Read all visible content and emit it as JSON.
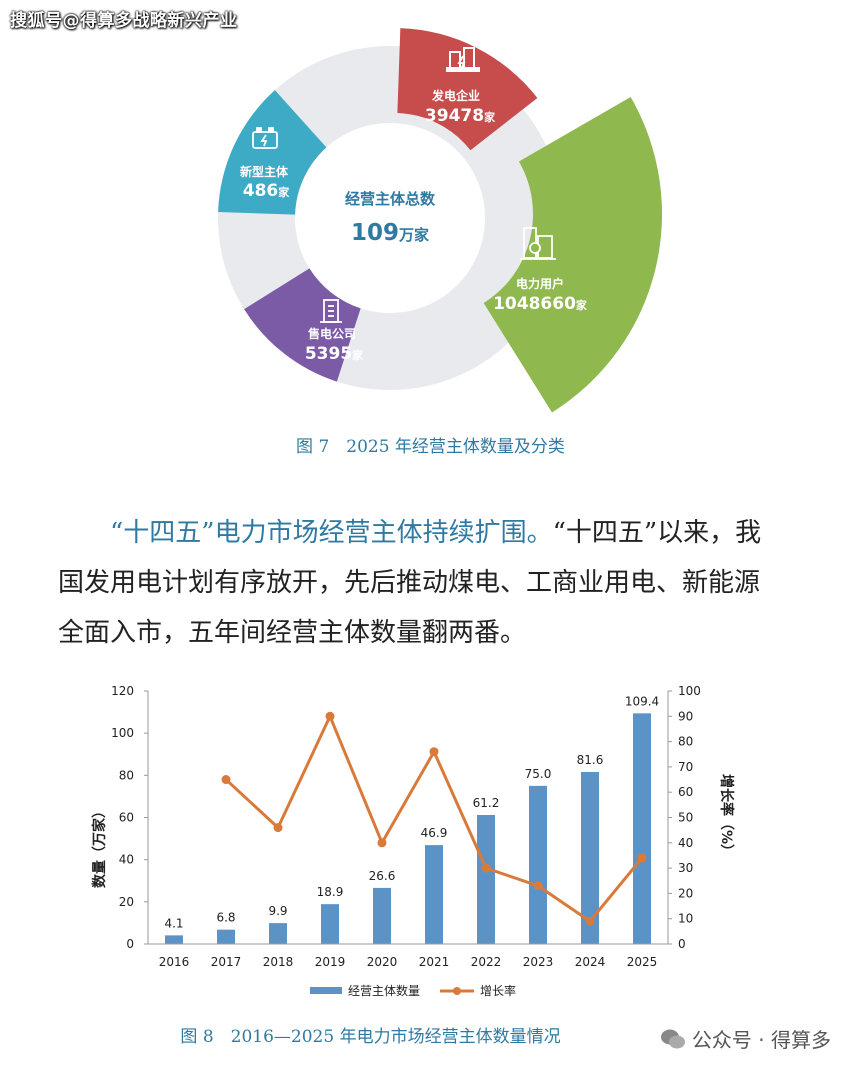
{
  "watermark_top": "搜狐号@得算多战略新兴产业",
  "figure7": {
    "caption": "图 7　2025 年经营主体数量及分类",
    "center_title": "经营主体总数",
    "center_value": "109",
    "center_unit": "万家",
    "segments": [
      {
        "label": "发电企业",
        "value": "39478",
        "unit": "家",
        "color": "#c64d4c",
        "icon": "power-plant-icon"
      },
      {
        "label": "电力用户",
        "value": "1048660",
        "unit": "家",
        "color": "#8fb84e",
        "icon": "building-icon"
      },
      {
        "label": "售电公司",
        "value": "5395",
        "unit": "家",
        "color": "#7b5aa6",
        "icon": "office-icon"
      },
      {
        "label": "新型主体",
        "value": "486",
        "unit": "家",
        "color": "#3daac6",
        "icon": "battery-icon"
      }
    ],
    "ring_color": "#e8eaee"
  },
  "paragraph": {
    "lead": "“十四五”电力市场经营主体持续扩围。",
    "body": "“十四五”以来，我国发用电计划有序放开，先后推动煤电、工商业用电、新能源全面入市，五年间经营主体数量翻两番。"
  },
  "figure8": {
    "caption": "图 8　2016—2025 年电力市场经营主体数量情况"
  },
  "chart_data": {
    "type": "bar",
    "categories": [
      "2016",
      "2017",
      "2018",
      "2019",
      "2020",
      "2021",
      "2022",
      "2023",
      "2024",
      "2025"
    ],
    "series": [
      {
        "name": "经营主体数量",
        "type": "bar",
        "axis": "left",
        "color": "#5b93c7",
        "values": [
          4.1,
          6.8,
          9.9,
          18.9,
          26.6,
          46.9,
          61.2,
          75.0,
          81.6,
          109.4
        ],
        "labels": [
          "4.1",
          "6.8",
          "9.9",
          "18.9",
          "26.6",
          "46.9",
          "61.2",
          "75.0",
          "81.6",
          "109.4"
        ]
      },
      {
        "name": "增长率",
        "type": "line",
        "axis": "right",
        "color": "#d97a3a",
        "values": [
          null,
          65,
          46,
          90,
          40,
          76,
          30,
          23,
          9,
          34
        ]
      }
    ],
    "ylabel": "数量（万家）",
    "y2label": "增长率（%）",
    "ylim": [
      0,
      120
    ],
    "yticks": [
      "0",
      "20",
      "40",
      "60",
      "80",
      "100",
      "120"
    ],
    "y2lim": [
      0,
      100
    ],
    "y2ticks": [
      "0",
      "10",
      "20",
      "30",
      "40",
      "50",
      "60",
      "70",
      "80",
      "90",
      "100"
    ],
    "legend_position": "bottom"
  },
  "watermark_bottom": "公众号 · 得算多"
}
